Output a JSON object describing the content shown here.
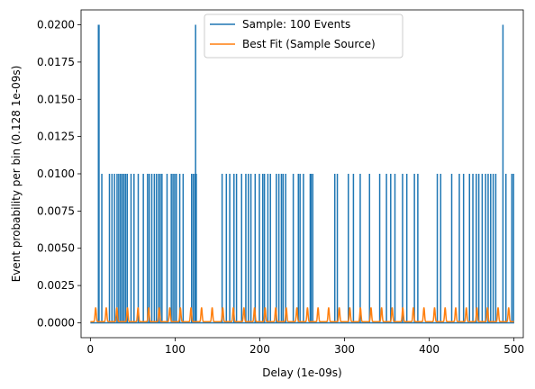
{
  "chart_data": {
    "type": "line",
    "title": "",
    "xlabel": "Delay (1e-09s)",
    "ylabel": "Event probability per bin (0.128 1e-09s)",
    "xlim": [
      -11,
      511
    ],
    "ylim": [
      -0.001,
      0.021
    ],
    "xticks": [
      0,
      100,
      200,
      300,
      400,
      500
    ],
    "yticks": [
      0.0,
      0.0025,
      0.005,
      0.0075,
      0.01,
      0.0125,
      0.015,
      0.0175,
      0.02
    ],
    "ytick_labels": [
      "0.0000",
      "0.0025",
      "0.0050",
      "0.0075",
      "0.0100",
      "0.0125",
      "0.0150",
      "0.0175",
      "0.0200"
    ],
    "grid": false,
    "legend_position": "top-center",
    "series": [
      {
        "name": "Sample: 100 Events",
        "color": "#1f77b4",
        "kind": "spikes",
        "baseline": 0.0,
        "spike_x": [
          9.5,
          10.2,
          13.5,
          22.5,
          25.5,
          28.5,
          31.5,
          33.5,
          35.5,
          37.5,
          39.5,
          41.5,
          43.5,
          48,
          51.5,
          56.5,
          62.5,
          67.5,
          69.5,
          72.5,
          75.5,
          78,
          80.5,
          82.5,
          84.5,
          90.5,
          95.5,
          97.5,
          99.5,
          101.5,
          105.5,
          109.5,
          119.5,
          121.5,
          123.5,
          124.2,
          125,
          155.5,
          160.5,
          164.5,
          169.5,
          172.5,
          178.5,
          183.5,
          186.5,
          189.5,
          194.5,
          199.5,
          203.5,
          205.5,
          209.5,
          212.5,
          219.5,
          222.5,
          225.5,
          227.5,
          230.5,
          239.5,
          245.5,
          247.5,
          251.5,
          259.5,
          260.5,
          262.5,
          288.5,
          291.5,
          304.5,
          310.5,
          318.5,
          329.5,
          341.5,
          349.5,
          354.5,
          359.5,
          368.5,
          373.5,
          382.5,
          386.5,
          409.5,
          413.5,
          426.5,
          435.5,
          440.5,
          447.5,
          451.5,
          455.5,
          458.5,
          462.5,
          466.5,
          469.5,
          472.5,
          475.5,
          478.5,
          487,
          490.5,
          497.5,
          499.5
        ],
        "spike_y": [
          0.02,
          0.02,
          0.01,
          0.01,
          0.01,
          0.01,
          0.01,
          0.01,
          0.01,
          0.01,
          0.01,
          0.01,
          0.01,
          0.01,
          0.01,
          0.01,
          0.01,
          0.01,
          0.01,
          0.01,
          0.01,
          0.01,
          0.01,
          0.01,
          0.01,
          0.01,
          0.01,
          0.01,
          0.01,
          0.01,
          0.01,
          0.01,
          0.01,
          0.01,
          0.01,
          0.02,
          0.01,
          0.01,
          0.01,
          0.01,
          0.01,
          0.01,
          0.01,
          0.01,
          0.01,
          0.01,
          0.01,
          0.01,
          0.01,
          0.01,
          0.01,
          0.01,
          0.01,
          0.01,
          0.01,
          0.01,
          0.01,
          0.01,
          0.01,
          0.01,
          0.01,
          0.01,
          0.01,
          0.01,
          0.01,
          0.01,
          0.01,
          0.01,
          0.01,
          0.01,
          0.01,
          0.01,
          0.01,
          0.01,
          0.01,
          0.01,
          0.01,
          0.01,
          0.01,
          0.01,
          0.01,
          0.01,
          0.01,
          0.01,
          0.01,
          0.01,
          0.01,
          0.01,
          0.01,
          0.01,
          0.01,
          0.01,
          0.01,
          0.02,
          0.01,
          0.01,
          0.01
        ]
      },
      {
        "name": "Best Fit (Sample Source)",
        "color": "#ff7f0e",
        "kind": "periodic",
        "x_range": [
          0,
          500
        ],
        "period": 12.5,
        "peak": 0.001,
        "floor": 7e-05
      }
    ]
  }
}
